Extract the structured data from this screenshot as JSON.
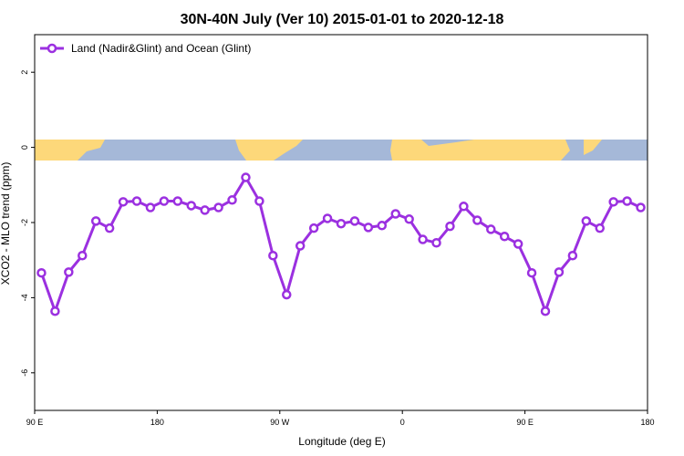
{
  "chart_data": {
    "type": "line",
    "title": "30N-40N July (Ver 10)   2015-01-01 to 2020-12-18",
    "x_label": "Longitude (deg E)",
    "y_label": "XCO2 - MLO trend (ppm)",
    "x": [
      95,
      105,
      115,
      125,
      135,
      145,
      155,
      165,
      175,
      185,
      195,
      205,
      215,
      225,
      235,
      245,
      255,
      265,
      275,
      285,
      295,
      305,
      315,
      325,
      335,
      345,
      355,
      365,
      375,
      385,
      395,
      405,
      415,
      425,
      435,
      445,
      455,
      465,
      475,
      485,
      495,
      505,
      515,
      525,
      535
    ],
    "series": [
      {
        "name": "Land (Nadir&Glint) and Ocean (Glint)",
        "color": "#9b30e0",
        "values": [
          -3.34,
          -4.36,
          -3.32,
          -2.88,
          -1.96,
          -2.15,
          -1.45,
          -1.43,
          -1.6,
          -1.43,
          -1.43,
          -1.55,
          -1.67,
          -1.6,
          -1.4,
          -0.8,
          -1.43,
          -2.88,
          -3.92,
          -2.62,
          -2.15,
          -1.89,
          -2.03,
          -1.96,
          -2.13,
          -2.08,
          -1.77,
          -1.91,
          -2.45,
          -2.54,
          -2.1,
          -1.57,
          -1.94,
          -2.18,
          -2.37,
          -2.57,
          -3.34,
          -4.36,
          -3.32,
          -2.88,
          -1.96,
          -2.15,
          -1.45,
          -1.43,
          -1.6
        ]
      }
    ],
    "xlim": [
      90,
      540
    ],
    "xticks": [
      {
        "value": 90,
        "label": "90 E"
      },
      180,
      {
        "value": 270,
        "label": "90 W"
      },
      {
        "value": 360,
        "label": "0"
      },
      {
        "value": 450,
        "label": "90 E"
      },
      {
        "value": 540,
        "label": "180"
      }
    ],
    "ylim": [
      -7,
      3
    ],
    "yticks": [
      2,
      0,
      -2,
      -4,
      -6
    ],
    "legend": "top-left"
  }
}
